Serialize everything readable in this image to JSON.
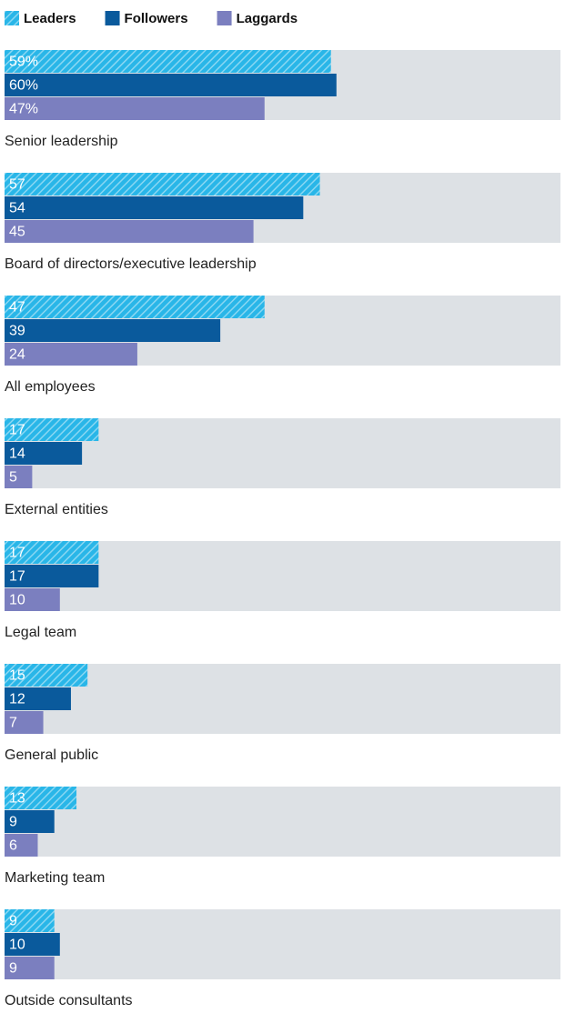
{
  "chart_data": {
    "type": "bar",
    "orientation": "horizontal",
    "categories": [
      "Senior leadership",
      "Board of directors/executive leadership",
      "All employees",
      "External entities",
      "Legal team",
      "General public",
      "Marketing team",
      "Outside consultants"
    ],
    "series": [
      {
        "name": "Leaders",
        "color": "#29b6e8",
        "pattern": "hatch",
        "values": [
          59,
          57,
          47,
          17,
          17,
          15,
          13,
          9
        ],
        "value_labels": [
          "59%",
          "57",
          "47",
          "17",
          "17",
          "15",
          "13",
          "9"
        ]
      },
      {
        "name": "Followers",
        "color": "#0a5a9c",
        "values": [
          60,
          54,
          39,
          14,
          17,
          12,
          9,
          10
        ],
        "value_labels": [
          "60%",
          "54",
          "39",
          "14",
          "17",
          "12",
          "9",
          "10"
        ]
      },
      {
        "name": "Laggards",
        "color": "#7b7fbf",
        "values": [
          47,
          45,
          24,
          5,
          10,
          7,
          6,
          9
        ],
        "value_labels": [
          "47%",
          "45",
          "24",
          "5",
          "10",
          "7",
          "6",
          "9"
        ]
      }
    ],
    "xlim": [
      0,
      100
    ],
    "legend": "top-left"
  }
}
